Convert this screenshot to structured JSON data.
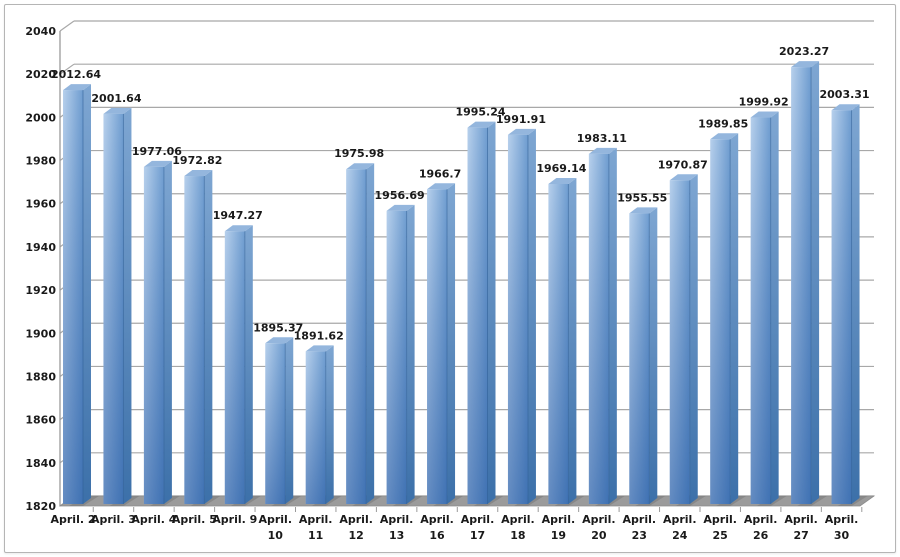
{
  "window": {
    "background": "#ffffff",
    "frame_border_color": "#b5b5b5"
  },
  "chart_data": {
    "type": "bar",
    "style": "3d-clustered-column",
    "title": "",
    "xlabel": "",
    "ylabel": "",
    "legend": "none",
    "grid": true,
    "value_labels_shown": true,
    "categories": [
      "April. 2",
      "April. 3",
      "April. 4",
      "April. 5",
      "April. 9",
      "April. 10",
      "April. 11",
      "April. 12",
      "April. 13",
      "April. 16",
      "April. 17",
      "April. 18",
      "April. 19",
      "April. 20",
      "April. 23",
      "April. 24",
      "April. 25",
      "April. 26",
      "April. 27",
      "April. 30"
    ],
    "values": [
      2012.64,
      2001.64,
      1977.06,
      1972.82,
      1947.27,
      1895.37,
      1891.62,
      1975.98,
      1956.69,
      1966.7,
      1995.24,
      1991.91,
      1969.14,
      1983.11,
      1955.55,
      1970.87,
      1989.85,
      1999.92,
      2023.27,
      2003.31
    ],
    "ylim": [
      1820,
      2040
    ],
    "yticks": [
      1820,
      1840,
      1860,
      1880,
      1900,
      1920,
      1940,
      1960,
      1980,
      2000,
      2020,
      2040
    ],
    "colors": {
      "bar_front_light": "#b7d0ec",
      "bar_front_mid": "#6f9dd0",
      "bar_shade_overlay": "#0f4696",
      "bar_side_light": "#7ea6d2",
      "bar_side_dark": "#3c70a9",
      "bar_top_face": "#94b6dd",
      "bar_edge": "#2f5f96",
      "gridline": "#a8a8a8",
      "axis": "#9a9a9a",
      "floor": "#9b9b9b",
      "floor_shadow": "#787878",
      "label_text": "#1a1a1a"
    }
  }
}
